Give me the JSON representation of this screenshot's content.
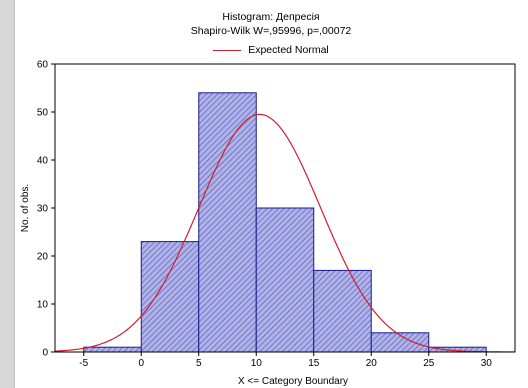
{
  "chart_data": {
    "type": "bar",
    "title": "Histogram: Депресія",
    "subtitle": "Shapiro-Wilk W=,95996, p=,00072",
    "xlabel": "X <= Category Boundary",
    "ylabel": "No. of obs.",
    "xlim": [
      -7.5,
      32.5
    ],
    "ylim": [
      0,
      60
    ],
    "x_ticks": [
      "-5",
      "0",
      "5",
      "10",
      "15",
      "20",
      "25",
      "30"
    ],
    "y_ticks": [
      "0",
      "10",
      "20",
      "30",
      "40",
      "50",
      "60"
    ],
    "bins": [
      {
        "lower": -5,
        "upper": 0,
        "count": 1
      },
      {
        "lower": 0,
        "upper": 5,
        "count": 23
      },
      {
        "lower": 5,
        "upper": 10,
        "count": 54
      },
      {
        "lower": 10,
        "upper": 15,
        "count": 30
      },
      {
        "lower": 15,
        "upper": 20,
        "count": 17
      },
      {
        "lower": 20,
        "upper": 25,
        "count": 4
      },
      {
        "lower": 25,
        "upper": 30,
        "count": 1
      }
    ],
    "expected_normal": {
      "name": "Expected Normal",
      "peak_x": 10.3,
      "peak_y": 49.5,
      "spread": 5.3
    },
    "legend_position": "top-center",
    "grid": false,
    "colors": {
      "bar_fill": "#b0b3e8",
      "bar_edge": "#1a1a8c",
      "hatch": "#5558b8",
      "curve": "#d21e2f"
    }
  }
}
